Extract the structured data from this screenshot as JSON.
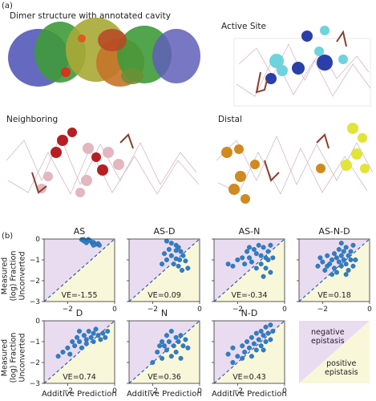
{
  "panel_a": {
    "label": "(a)",
    "views": [
      {
        "title": "Dimer structure with annotated cavity"
      },
      {
        "title": "Active Site"
      },
      {
        "title": "Neighboring"
      },
      {
        "title": "Distal"
      }
    ]
  },
  "panel_b": {
    "label": "(b)",
    "ylabel_line1": "Measured",
    "ylabel_line2": "(log) Fraction",
    "ylabel_line3": "Unconverted",
    "xlabel": "Additive Prediction",
    "legend": {
      "negative": [
        "negative",
        "epistasis"
      ],
      "positive": [
        "positive",
        "epistasis"
      ]
    }
  },
  "colors": {
    "negative_region": "#e9dcf0",
    "positive_region": "#f9f7da",
    "point": "#2f7ec4",
    "diagonal": "#2a5fb5",
    "active_site_dark": "#2a3fa8",
    "active_site_light": "#6ed3dc",
    "neighboring_dark": "#b51f24",
    "neighboring_light": "#e3b6c0",
    "distal_dark": "#d08a1f",
    "distal_light": "#e2e437"
  },
  "chart_data": [
    {
      "type": "scatter",
      "title": "AS",
      "annotation": "VE=-1.55",
      "xlim": [
        -3,
        0
      ],
      "ylim": [
        -3,
        0
      ],
      "xticks": [
        "-2",
        "0"
      ],
      "yticks": [
        "0",
        "-1",
        "-2",
        "-3"
      ],
      "diagonal": true,
      "points": [
        [
          -1.4,
          -0.03
        ],
        [
          -1.3,
          -0.1
        ],
        [
          -1.12,
          -0.02
        ],
        [
          -1.05,
          -0.08
        ],
        [
          -1.2,
          -0.18
        ],
        [
          -0.95,
          -0.2
        ],
        [
          -0.9,
          -0.16
        ],
        [
          -0.8,
          -0.25
        ],
        [
          -0.7,
          -0.22
        ],
        [
          -0.9,
          -0.3
        ],
        [
          -1.32,
          -0.02
        ],
        [
          -0.65,
          -0.3
        ]
      ]
    },
    {
      "type": "scatter",
      "title": "AS-D",
      "annotation": "VE=0.09",
      "xlim": [
        -3,
        0
      ],
      "ylim": [
        -3,
        0
      ],
      "xticks": [
        "-2",
        "0"
      ],
      "yticks": [
        "0",
        "-1",
        "-2",
        "-3"
      ],
      "diagonal": true,
      "points": [
        [
          -1.4,
          -0.1
        ],
        [
          -1.2,
          -0.2
        ],
        [
          -1.0,
          -0.3
        ],
        [
          -0.9,
          -0.4
        ],
        [
          -1.3,
          -0.5
        ],
        [
          -1.0,
          -0.55
        ],
        [
          -0.8,
          -0.6
        ],
        [
          -1.5,
          -0.7
        ],
        [
          -1.2,
          -0.8
        ],
        [
          -0.7,
          -0.8
        ],
        [
          -1.0,
          -0.95
        ],
        [
          -1.4,
          -1.0
        ],
        [
          -0.85,
          -1.0
        ],
        [
          -0.6,
          -1.05
        ],
        [
          -1.1,
          -1.2
        ],
        [
          -0.9,
          -1.3
        ],
        [
          -1.6,
          -1.2
        ],
        [
          -0.5,
          -1.4
        ],
        [
          -0.75,
          -1.5
        ]
      ]
    },
    {
      "type": "scatter",
      "title": "AS-N",
      "annotation": "VE=-0.34",
      "xlim": [
        -3,
        0
      ],
      "ylim": [
        -3,
        0
      ],
      "xticks": [
        "-2",
        "0"
      ],
      "yticks": [
        "0",
        "-1",
        "-2",
        "-3"
      ],
      "diagonal": true,
      "points": [
        [
          -2.4,
          -1.2
        ],
        [
          -2.2,
          -1.3
        ],
        [
          -2.0,
          -1.0
        ],
        [
          -1.8,
          -0.9
        ],
        [
          -1.7,
          -1.2
        ],
        [
          -1.6,
          -0.6
        ],
        [
          -1.5,
          -0.9
        ],
        [
          -1.4,
          -1.1
        ],
        [
          -1.3,
          -0.5
        ],
        [
          -1.2,
          -0.7
        ],
        [
          -1.1,
          -0.3
        ],
        [
          -1.0,
          -0.8
        ],
        [
          -1.0,
          -1.2
        ],
        [
          -0.9,
          -0.4
        ],
        [
          -0.8,
          -0.9
        ],
        [
          -0.8,
          -1.4
        ],
        [
          -0.7,
          -0.6
        ],
        [
          -0.7,
          -1.0
        ],
        [
          -0.6,
          -1.6
        ],
        [
          -0.6,
          -0.3
        ],
        [
          -1.2,
          -1.4
        ],
        [
          -1.5,
          -0.4
        ],
        [
          -0.9,
          -1.8
        ],
        [
          -0.5,
          -0.9
        ]
      ]
    },
    {
      "type": "scatter",
      "title": "AS-N-D",
      "annotation": "VE=0.18",
      "xlim": [
        -3,
        0
      ],
      "ylim": [
        -3,
        0
      ],
      "xticks": [
        "-2",
        "0"
      ],
      "yticks": [
        "0",
        "-1",
        "-2",
        "-3"
      ],
      "diagonal": true,
      "points": [
        [
          -2.2,
          -1.3
        ],
        [
          -2.0,
          -1.1
        ],
        [
          -1.9,
          -1.5
        ],
        [
          -1.8,
          -0.8
        ],
        [
          -1.7,
          -1.2
        ],
        [
          -1.6,
          -1.0
        ],
        [
          -1.5,
          -0.7
        ],
        [
          -1.5,
          -1.4
        ],
        [
          -1.4,
          -0.9
        ],
        [
          -1.3,
          -0.5
        ],
        [
          -1.3,
          -1.1
        ],
        [
          -1.2,
          -0.8
        ],
        [
          -1.2,
          -1.3
        ],
        [
          -1.1,
          -0.6
        ],
        [
          -1.1,
          -1.0
        ],
        [
          -1.0,
          -0.4
        ],
        [
          -1.0,
          -1.2
        ],
        [
          -0.9,
          -0.8
        ],
        [
          -0.9,
          -1.5
        ],
        [
          -0.8,
          -0.6
        ],
        [
          -0.8,
          -1.0
        ],
        [
          -0.7,
          -1.3
        ],
        [
          -1.6,
          -1.7
        ],
        [
          -1.4,
          -1.6
        ],
        [
          -1.0,
          -1.7
        ],
        [
          -0.7,
          -0.3
        ],
        [
          -1.2,
          -0.2
        ],
        [
          -0.6,
          -1.0
        ],
        [
          -2.1,
          -0.9
        ],
        [
          -1.8,
          -1.3
        ]
      ]
    },
    {
      "type": "scatter",
      "title": "D",
      "annotation": "VE=0.74",
      "xlim": [
        -3,
        0
      ],
      "ylim": [
        -3,
        0
      ],
      "xticks": [
        "-2",
        "0"
      ],
      "yticks": [
        "0",
        "-1",
        "-2",
        "-3"
      ],
      "diagonal": true,
      "points": [
        [
          -2.2,
          -1.5
        ],
        [
          -2.0,
          -1.3
        ],
        [
          -1.9,
          -1.6
        ],
        [
          -1.8,
          -1.0
        ],
        [
          -1.7,
          -1.2
        ],
        [
          -1.6,
          -0.8
        ],
        [
          -1.5,
          -1.0
        ],
        [
          -1.4,
          -1.3
        ],
        [
          -1.3,
          -0.7
        ],
        [
          -1.2,
          -0.9
        ],
        [
          -1.2,
          -1.1
        ],
        [
          -1.1,
          -0.5
        ],
        [
          -1.0,
          -0.8
        ],
        [
          -0.9,
          -0.6
        ],
        [
          -0.9,
          -1.0
        ],
        [
          -0.8,
          -0.4
        ],
        [
          -0.7,
          -0.7
        ],
        [
          -0.6,
          -0.9
        ],
        [
          -0.5,
          -0.6
        ],
        [
          -0.4,
          -0.8
        ],
        [
          -2.4,
          -1.7
        ],
        [
          -0.3,
          -0.5
        ],
        [
          -1.5,
          -0.5
        ]
      ]
    },
    {
      "type": "scatter",
      "title": "N",
      "annotation": "VE=0.36",
      "xlim": [
        -3,
        0
      ],
      "ylim": [
        -3,
        0
      ],
      "xticks": [
        "-2",
        "0"
      ],
      "yticks": [
        "0",
        "-1",
        "-2",
        "-3"
      ],
      "diagonal": true,
      "points": [
        [
          -2.0,
          -2.0
        ],
        [
          -1.8,
          -1.5
        ],
        [
          -1.6,
          -1.8
        ],
        [
          -1.5,
          -1.2
        ],
        [
          -1.4,
          -1.4
        ],
        [
          -1.3,
          -1.0
        ],
        [
          -1.2,
          -1.7
        ],
        [
          -1.1,
          -1.2
        ],
        [
          -1.0,
          -0.8
        ],
        [
          -1.0,
          -1.5
        ],
        [
          -0.9,
          -1.0
        ],
        [
          -0.8,
          -1.8
        ],
        [
          -0.8,
          -0.7
        ],
        [
          -0.7,
          -1.2
        ],
        [
          -0.6,
          -0.9
        ],
        [
          -1.2,
          -0.5
        ],
        [
          -1.4,
          -0.7
        ],
        [
          -1.6,
          -1.0
        ],
        [
          -0.5,
          -1.3
        ],
        [
          -1.7,
          -1.2
        ]
      ]
    },
    {
      "type": "scatter",
      "title": "N-D",
      "annotation": "VE=0.43",
      "xlim": [
        -3,
        0
      ],
      "ylim": [
        -3,
        0
      ],
      "xticks": [
        "-2",
        "0"
      ],
      "yticks": [
        "0",
        "-1",
        "-2",
        "-3"
      ],
      "diagonal": true,
      "points": [
        [
          -2.4,
          -1.6
        ],
        [
          -2.2,
          -1.3
        ],
        [
          -2.0,
          -1.7
        ],
        [
          -1.8,
          -1.2
        ],
        [
          -1.7,
          -1.5
        ],
        [
          -1.6,
          -1.0
        ],
        [
          -1.5,
          -1.3
        ],
        [
          -1.4,
          -0.8
        ],
        [
          -1.3,
          -1.1
        ],
        [
          -1.2,
          -0.6
        ],
        [
          -1.2,
          -1.4
        ],
        [
          -1.1,
          -0.9
        ],
        [
          -1.0,
          -0.5
        ],
        [
          -1.0,
          -1.2
        ],
        [
          -0.9,
          -0.7
        ],
        [
          -0.8,
          -1.0
        ],
        [
          -0.8,
          -0.3
        ],
        [
          -0.7,
          -0.6
        ],
        [
          -0.6,
          -0.2
        ],
        [
          -0.5,
          -0.5
        ],
        [
          -1.8,
          -1.8
        ],
        [
          -2.2,
          -2.0
        ],
        [
          -1.4,
          -1.7
        ],
        [
          -0.9,
          -1.4
        ],
        [
          -0.6,
          -0.9
        ]
      ]
    }
  ]
}
